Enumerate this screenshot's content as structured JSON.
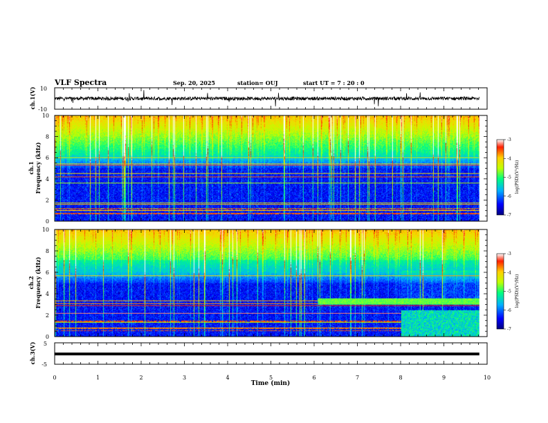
{
  "header": {
    "title": "VLF Spectra",
    "date": "Sep. 20, 2025",
    "station": "station= OUJ",
    "start": "start  UT =   7 : 20 : 0"
  },
  "chart_data": [
    {
      "type": "line",
      "name": "ch1-waveform",
      "ylabel": "ch.1(V)",
      "ylim": [
        -10,
        10
      ],
      "y_ticks": [
        "10",
        "-10"
      ],
      "xlim": [
        0,
        10
      ],
      "trace_end_min": 9.82
    },
    {
      "type": "heatmap",
      "name": "ch1-spectrogram",
      "ylabel": "ch.1\nFrequency (kHz)",
      "ylabel_lines": [
        "ch.1",
        "Frequency (kHz)"
      ],
      "ylim": [
        0,
        10
      ],
      "y_ticks": [
        "0",
        "2",
        "4",
        "6",
        "8",
        "10"
      ],
      "xlim": [
        0,
        10
      ],
      "data_end_min": 9.82,
      "colorbar": {
        "label": "log(PSD)(V²/Hz)",
        "range": [
          -7,
          -3
        ],
        "ticks": [
          "-3",
          "-4",
          "-5",
          "-6",
          "-7"
        ],
        "colors": [
          "#000080",
          "#0000ff",
          "#00b0ff",
          "#00ff80",
          "#c0ff00",
          "#ffd000",
          "#ff2000",
          "#ffffff"
        ]
      }
    },
    {
      "type": "heatmap",
      "name": "ch2-spectrogram",
      "ylabel": "ch.2\nFrequency (kHz)",
      "ylabel_lines": [
        "ch.2",
        "Frequency (kHz)"
      ],
      "ylim": [
        0,
        10
      ],
      "y_ticks": [
        "0",
        "2",
        "4",
        "6",
        "8",
        "10"
      ],
      "xlim": [
        0,
        10
      ],
      "data_end_min": 9.82,
      "colorbar": {
        "label": "log(PSD)(V²/Hz)",
        "range": [
          -7,
          -3
        ],
        "ticks": [
          "-3",
          "-4",
          "-5",
          "-6",
          "-7"
        ],
        "colors": [
          "#000080",
          "#0000ff",
          "#00b0ff",
          "#00ff80",
          "#c0ff00",
          "#ffd000",
          "#ff2000",
          "#ffffff"
        ]
      }
    },
    {
      "type": "line",
      "name": "ch3-waveform",
      "ylabel": "ch.3(V)",
      "ylim": [
        -5,
        5
      ],
      "y_ticks": [
        "5",
        "-5"
      ],
      "xlim": [
        0,
        10
      ],
      "level_value": -0.2,
      "trace_end_min": 9.82
    }
  ],
  "x_axis": {
    "label": "Time (min)",
    "ticks": [
      "0",
      "1",
      "2",
      "3",
      "4",
      "5",
      "6",
      "7",
      "8",
      "9",
      "10"
    ]
  }
}
